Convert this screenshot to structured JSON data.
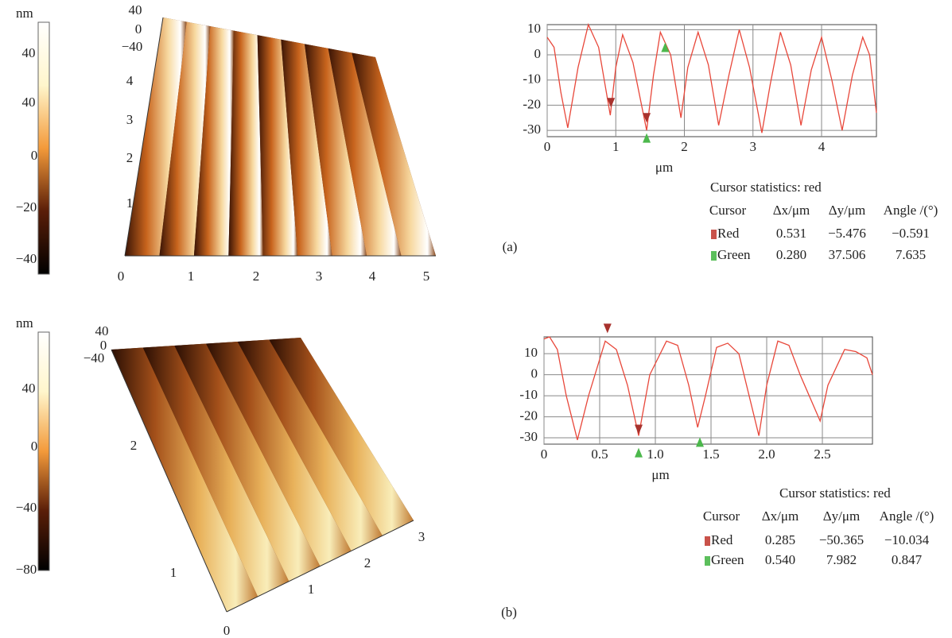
{
  "chart_data": [
    {
      "type": "line",
      "x_label": "μm",
      "x": [
        0,
        0.1,
        0.2,
        0.3,
        0.45,
        0.6,
        0.75,
        0.92,
        1.0,
        1.1,
        1.25,
        1.45,
        1.55,
        1.65,
        1.8,
        1.95,
        2.05,
        2.2,
        2.35,
        2.5,
        2.65,
        2.8,
        2.95,
        3.13,
        3.25,
        3.4,
        3.55,
        3.7,
        3.85,
        4.0,
        4.15,
        4.3,
        4.45,
        4.6,
        4.7,
        4.8
      ],
      "series": [
        {
          "color": "#e8473a",
          "values": [
            7,
            3,
            -15,
            -29,
            -5,
            12,
            3,
            -24,
            -5,
            8,
            -3,
            -30,
            -8,
            9,
            0,
            -25,
            -5,
            9,
            -4,
            -28,
            -8,
            10,
            -5,
            -31,
            -12,
            9,
            -4,
            -28,
            -6,
            7,
            -10,
            -30,
            -8,
            7,
            0,
            -23
          ]
        }
      ],
      "xlim": [
        0,
        4.8
      ],
      "ylim": [
        -32.5,
        12
      ],
      "xticks": [
        0,
        1,
        2,
        3,
        4
      ],
      "yticks": [
        -30,
        -20,
        -10,
        0,
        10
      ],
      "grid": true,
      "cursors": [
        {
          "color": "#a8322d",
          "direction": "down",
          "x": 0.93,
          "y": -19
        },
        {
          "color": "#a8322d",
          "direction": "down",
          "x": 1.45,
          "y": -25
        },
        {
          "color": "#4cb84c",
          "direction": "up",
          "x": 1.45,
          "y": -33
        },
        {
          "color": "#4cb84c",
          "direction": "up",
          "x": 1.72,
          "y": 3
        }
      ]
    },
    {
      "type": "line",
      "x_label": "μm",
      "x": [
        0,
        0.05,
        0.12,
        0.2,
        0.3,
        0.4,
        0.55,
        0.65,
        0.75,
        0.85,
        0.95,
        1.1,
        1.2,
        1.3,
        1.38,
        1.45,
        1.55,
        1.65,
        1.75,
        1.93,
        2.0,
        2.1,
        2.2,
        2.3,
        2.48,
        2.55,
        2.7,
        2.8,
        2.9,
        2.95
      ],
      "series": [
        {
          "color": "#e8473a",
          "values": [
            17,
            18,
            12,
            -10,
            -31,
            -10,
            16,
            12,
            -5,
            -29,
            0,
            16,
            14,
            -5,
            -25,
            -10,
            13,
            15,
            10,
            -29,
            -5,
            16,
            14,
            0,
            -22,
            -5,
            12,
            11,
            8,
            0
          ]
        }
      ],
      "xlim": [
        0,
        2.95
      ],
      "ylim": [
        -33,
        18
      ],
      "xticks": [
        0,
        0.5,
        {
          "value": 1,
          "label": "1.0"
        },
        1.5,
        {
          "value": 2,
          "label": "2.0"
        },
        2.5
      ],
      "yticks": [
        -30,
        -20,
        -10,
        0,
        10
      ],
      "grid": true,
      "cursors": [
        {
          "color": "#a8322d",
          "direction": "down",
          "x": 0.57,
          "y": 22
        },
        {
          "color": "#a8322d",
          "direction": "down",
          "x": 0.85,
          "y": -26
        },
        {
          "color": "#4cb84c",
          "direction": "up",
          "x": 0.85,
          "y": -37
        },
        {
          "color": "#4cb84c",
          "direction": "up",
          "x": 1.4,
          "y": -32
        }
      ]
    }
  ],
  "panels": [
    {
      "label": "(a)",
      "colorbar": {
        "unit": "nm",
        "ticks": [
          "40",
          "40",
          "0",
          "−20",
          "−40"
        ]
      },
      "surface": {
        "z_ticks": [
          "40",
          "0",
          "−40"
        ],
        "y_ticks": [
          "4",
          "3",
          "2",
          "1"
        ],
        "x_ticks": [
          "0",
          "1",
          "2",
          "3",
          "4",
          "5"
        ]
      },
      "table": {
        "title": "Cursor statistics: red",
        "header": [
          "Cursor",
          "Δx/μm",
          "Δy/μm",
          "Angle /(°)"
        ],
        "rows": [
          [
            "Red",
            "0.531",
            "−5.476",
            "−0.591"
          ],
          [
            "Green",
            "0.280",
            "37.506",
            "7.635"
          ]
        ]
      }
    },
    {
      "label": "(b)",
      "colorbar": {
        "unit": "nm",
        "ticks": [
          "40",
          "0",
          "−40",
          "−80"
        ]
      },
      "surface": {
        "z_ticks": [
          "40",
          "0",
          "−40"
        ],
        "y_ticks": [
          "2",
          "1"
        ],
        "x_ticks": [
          "0",
          "1",
          "2",
          "3"
        ]
      },
      "table": {
        "title": "Cursor statistics: red",
        "header": [
          "Cursor",
          "Δx/μm",
          "Δy/μm",
          "Angle /(°)"
        ],
        "rows": [
          [
            "Red",
            "0.285",
            "−50.365",
            "−10.034"
          ],
          [
            "Green",
            "0.540",
            "7.982",
            "0.847"
          ]
        ]
      }
    }
  ]
}
